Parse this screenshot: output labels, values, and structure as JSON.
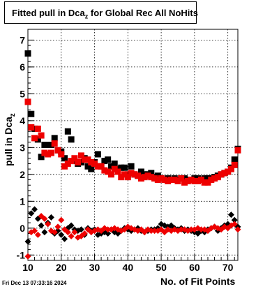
{
  "chart_data": {
    "type": "scatter",
    "title": "Fitted pull in Dca",
    "title_sub": "z",
    "title_suffix": "for Global Rec All NoHits",
    "ylabel": "pull in Dca",
    "ylabel_sub": "z",
    "xlabel": "No. of Fit Points",
    "xlim": [
      10,
      73
    ],
    "ylim": [
      -1.2,
      7.4
    ],
    "x_ticks": [
      10,
      20,
      30,
      40,
      50,
      60,
      70
    ],
    "y_ticks": [
      -1,
      0,
      1,
      2,
      3,
      4,
      5,
      6,
      7
    ],
    "grid": true,
    "marker_colors": {
      "black": "#000000",
      "red": "#ee0000"
    },
    "series": [
      {
        "marker": "square",
        "color": "#000000",
        "x": [
          10,
          11,
          12,
          13,
          14,
          15,
          16,
          17,
          18,
          19,
          20,
          21,
          22,
          23,
          24,
          25,
          26,
          27,
          28,
          29,
          30,
          31,
          32,
          33,
          34,
          35,
          36,
          37,
          38,
          39,
          40,
          41,
          42,
          43,
          44,
          45,
          46,
          47,
          48,
          49,
          50,
          51,
          52,
          53,
          54,
          55,
          56,
          57,
          58,
          59,
          60,
          61,
          62,
          63,
          64,
          65,
          66,
          67,
          68,
          69,
          70,
          71,
          72,
          73
        ],
        "y": [
          6.5,
          4.25,
          3.7,
          3.3,
          2.65,
          3.1,
          3.1,
          3.1,
          3.35,
          2.9,
          2.85,
          2.6,
          3.6,
          3.3,
          2.5,
          2.4,
          2.45,
          2.6,
          2.3,
          2.2,
          2.45,
          2.75,
          2.3,
          2.5,
          2.55,
          2.3,
          2.4,
          2.2,
          2.25,
          2.25,
          2.0,
          2.3,
          2.0,
          1.95,
          2.1,
          2.0,
          2.0,
          2.05,
          1.9,
          1.95,
          1.85,
          1.8,
          1.85,
          1.8,
          1.85,
          1.8,
          1.85,
          1.85,
          1.8,
          1.8,
          1.85,
          1.85,
          1.8,
          1.85,
          1.85,
          1.85,
          1.9,
          1.95,
          2.0,
          2.05,
          2.1,
          2.25,
          2.55,
          2.95
        ]
      },
      {
        "marker": "square",
        "color": "#ee0000",
        "x": [
          10,
          11,
          12,
          13,
          14,
          15,
          16,
          17,
          18,
          19,
          20,
          21,
          22,
          23,
          24,
          25,
          26,
          27,
          28,
          29,
          30,
          31,
          32,
          33,
          34,
          35,
          36,
          37,
          38,
          39,
          40,
          41,
          42,
          43,
          44,
          45,
          46,
          47,
          48,
          49,
          50,
          51,
          52,
          53,
          54,
          55,
          56,
          57,
          58,
          59,
          60,
          61,
          62,
          63,
          64,
          65,
          66,
          67,
          68,
          69,
          70,
          71,
          72,
          73
        ],
        "y": [
          4.7,
          3.75,
          3.35,
          3.7,
          3.45,
          2.8,
          2.75,
          2.8,
          3.15,
          2.9,
          2.75,
          2.3,
          2.4,
          2.5,
          2.6,
          2.45,
          2.7,
          2.55,
          2.55,
          2.45,
          2.4,
          2.3,
          2.3,
          2.15,
          2.1,
          2.0,
          2.2,
          2.1,
          1.9,
          2.0,
          1.9,
          2.05,
          2.0,
          1.95,
          1.85,
          1.9,
          1.95,
          1.9,
          1.85,
          1.8,
          1.85,
          1.8,
          1.75,
          1.8,
          1.8,
          1.75,
          1.85,
          1.7,
          1.75,
          1.8,
          1.75,
          1.75,
          1.8,
          1.7,
          1.7,
          1.8,
          1.85,
          1.9,
          2.0,
          2.05,
          2.1,
          2.2,
          2.35,
          2.9
        ]
      },
      {
        "marker": "diamond",
        "color": "#000000",
        "x": [
          10,
          11,
          12,
          13,
          14,
          15,
          16,
          17,
          18,
          19,
          20,
          21,
          22,
          23,
          24,
          25,
          26,
          27,
          28,
          29,
          30,
          31,
          32,
          33,
          34,
          35,
          36,
          37,
          38,
          39,
          40,
          41,
          42,
          43,
          44,
          45,
          46,
          47,
          48,
          49,
          50,
          51,
          52,
          53,
          54,
          55,
          56,
          57,
          58,
          59,
          60,
          61,
          62,
          63,
          64,
          65,
          66,
          67,
          68,
          69,
          70,
          71,
          72,
          73
        ],
        "y": [
          -0.5,
          0.55,
          0.7,
          0.35,
          0.1,
          -0.15,
          0.2,
          0.4,
          -0.2,
          -0.1,
          -0.25,
          -0.4,
          0.0,
          0.1,
          -0.05,
          -0.1,
          -0.05,
          -0.25,
          0.0,
          -0.1,
          -0.05,
          -0.25,
          -0.2,
          -0.15,
          -0.2,
          -0.05,
          -0.15,
          -0.2,
          -0.1,
          0.0,
          -0.05,
          -0.1,
          -0.05,
          0.0,
          -0.1,
          -0.15,
          -0.1,
          -0.05,
          -0.05,
          0.0,
          0.15,
          0.1,
          0.05,
          0.1,
          0.0,
          -0.05,
          0.0,
          -0.1,
          -0.05,
          -0.1,
          -0.15,
          -0.2,
          -0.1,
          -0.15,
          -0.05,
          0.0,
          0.05,
          -0.1,
          0.0,
          0.1,
          0.15,
          0.5,
          0.3,
          0.05
        ]
      },
      {
        "marker": "diamond",
        "color": "#ee0000",
        "x": [
          10,
          11,
          12,
          13,
          14,
          15,
          16,
          17,
          18,
          19,
          20,
          21,
          22,
          23,
          24,
          25,
          26,
          27,
          28,
          29,
          30,
          31,
          32,
          33,
          34,
          35,
          36,
          37,
          38,
          39,
          40,
          41,
          42,
          43,
          44,
          45,
          46,
          47,
          48,
          49,
          50,
          51,
          52,
          53,
          54,
          55,
          56,
          57,
          58,
          59,
          60,
          61,
          62,
          63,
          64,
          65,
          66,
          67,
          68,
          69,
          70,
          71,
          72,
          73
        ],
        "y": [
          -1.05,
          -0.15,
          -0.1,
          -0.25,
          0.45,
          0.35,
          0.15,
          -0.1,
          -0.15,
          0.05,
          0.3,
          -0.05,
          -0.15,
          -0.3,
          -0.15,
          -0.35,
          -0.3,
          -0.2,
          -0.05,
          -0.15,
          -0.1,
          -0.05,
          -0.1,
          0.0,
          -0.05,
          -0.05,
          0.0,
          -0.05,
          -0.1,
          -0.05,
          0.05,
          0.0,
          -0.05,
          -0.1,
          -0.05,
          -0.15,
          -0.05,
          -0.1,
          -0.1,
          -0.1,
          -0.05,
          -0.15,
          -0.05,
          -0.1,
          -0.05,
          -0.1,
          -0.05,
          -0.05,
          -0.1,
          -0.05,
          -0.05,
          0.0,
          -0.05,
          -0.05,
          -0.1,
          0.0,
          0.05,
          0.0,
          -0.05,
          0.05,
          0.0,
          0.1,
          0.15,
          -0.05
        ]
      }
    ]
  },
  "footer": {
    "timestamp": "Fri Dec 13 07:33:16 2024"
  }
}
